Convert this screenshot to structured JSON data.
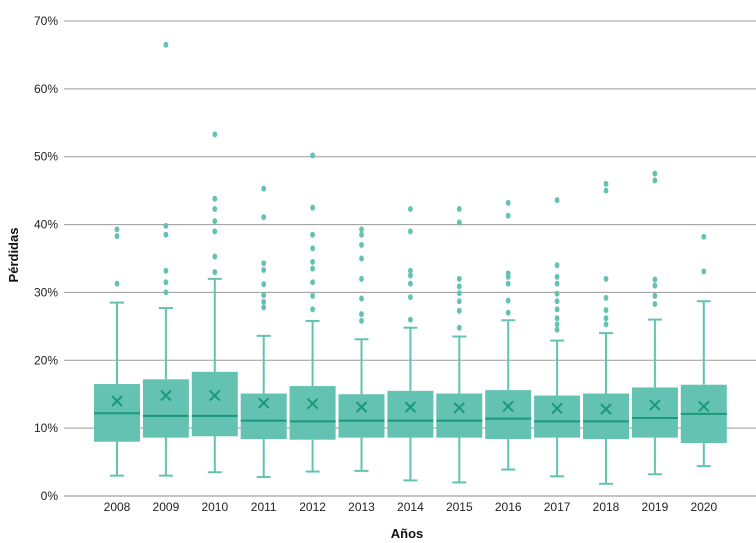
{
  "chart_data": {
    "type": "box",
    "xlabel": "Años",
    "ylabel": "Pérdidas",
    "ylim": [
      0,
      70
    ],
    "y_ticks": [
      0,
      10,
      20,
      30,
      40,
      50,
      60,
      70
    ],
    "y_tick_labels": [
      "0%",
      "10%",
      "20%",
      "30%",
      "40%",
      "50%",
      "60%",
      "70%"
    ],
    "grid": "horizontal",
    "box_color": "#63c2b2",
    "line_color": "#1a9a78",
    "categories": [
      "2008",
      "2009",
      "2010",
      "2011",
      "2012",
      "2013",
      "2014",
      "2015",
      "2016",
      "2017",
      "2018",
      "2019",
      "2020"
    ],
    "boxes": [
      {
        "year": "2008",
        "min": 3,
        "q1": 8,
        "median": 12.2,
        "q3": 16.5,
        "max": 28.5,
        "mean": 14,
        "outliers": [
          31.3,
          38.3,
          39.3
        ]
      },
      {
        "year": "2009",
        "min": 3,
        "q1": 8.6,
        "median": 11.8,
        "q3": 17.2,
        "max": 27.7,
        "mean": 14.8,
        "outliers": [
          30,
          31.5,
          33.2,
          38.5,
          39.8,
          66.5
        ]
      },
      {
        "year": "2010",
        "min": 3.5,
        "q1": 8.8,
        "median": 11.8,
        "q3": 18.3,
        "max": 32,
        "mean": 14.8,
        "outliers": [
          33,
          35.3,
          39,
          40.5,
          42.3,
          43.8,
          53.3
        ]
      },
      {
        "year": "2011",
        "min": 2.8,
        "q1": 8.4,
        "median": 11.1,
        "q3": 15.1,
        "max": 23.6,
        "mean": 13.7,
        "outliers": [
          27.8,
          28.6,
          29.6,
          31.2,
          33.3,
          34.3,
          41.1,
          45.3
        ]
      },
      {
        "year": "2012",
        "min": 3.6,
        "q1": 8.3,
        "median": 11,
        "q3": 16.2,
        "max": 25.8,
        "mean": 13.6,
        "outliers": [
          27.5,
          29.5,
          31.5,
          33.5,
          34.5,
          36.5,
          38.5,
          42.5,
          50.2
        ]
      },
      {
        "year": "2013",
        "min": 3.7,
        "q1": 8.6,
        "median": 11.1,
        "q3": 15,
        "max": 23.1,
        "mean": 13.1,
        "outliers": [
          25.8,
          26.8,
          29.1,
          32,
          35,
          37,
          38.5,
          39.3
        ]
      },
      {
        "year": "2014",
        "min": 2.3,
        "q1": 8.6,
        "median": 11.1,
        "q3": 15.5,
        "max": 24.8,
        "mean": 13.1,
        "outliers": [
          26,
          29.3,
          31.3,
          32.5,
          33.2,
          39,
          42.3
        ]
      },
      {
        "year": "2015",
        "min": 2,
        "q1": 8.6,
        "median": 11.1,
        "q3": 15.1,
        "max": 23.5,
        "mean": 13,
        "outliers": [
          24.8,
          27.3,
          28.7,
          29.9,
          30.9,
          32,
          40.3,
          42.3
        ]
      },
      {
        "year": "2016",
        "min": 3.9,
        "q1": 8.4,
        "median": 11.4,
        "q3": 15.6,
        "max": 25.9,
        "mean": 13.2,
        "outliers": [
          27,
          28.8,
          31.3,
          32.3,
          32.8,
          41.3,
          43.2
        ]
      },
      {
        "year": "2017",
        "min": 2.9,
        "q1": 8.6,
        "median": 11,
        "q3": 14.8,
        "max": 22.9,
        "mean": 12.9,
        "outliers": [
          24.5,
          25.3,
          26.2,
          27.5,
          28.7,
          29.8,
          31.3,
          32.3,
          34,
          43.6
        ]
      },
      {
        "year": "2018",
        "min": 1.8,
        "q1": 8.4,
        "median": 11,
        "q3": 15.1,
        "max": 24,
        "mean": 12.8,
        "outliers": [
          25.3,
          26.2,
          27.4,
          29.2,
          32,
          45,
          46
        ]
      },
      {
        "year": "2019",
        "min": 3.2,
        "q1": 8.6,
        "median": 11.5,
        "q3": 16,
        "max": 26,
        "mean": 13.4,
        "outliers": [
          28.3,
          29.5,
          31,
          31.9,
          46.5,
          47.5
        ]
      },
      {
        "year": "2020",
        "min": 4.4,
        "q1": 7.8,
        "median": 12.1,
        "q3": 16.4,
        "max": 28.7,
        "mean": 13.2,
        "outliers": [
          33.1,
          38.2
        ]
      }
    ]
  }
}
